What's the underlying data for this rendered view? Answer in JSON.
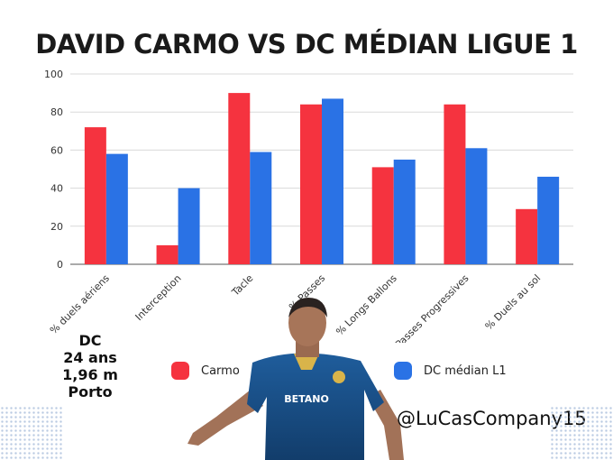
{
  "title": "DAVID CARMO VS DC MÉDIAN LIGUE 1",
  "player_info": [
    "DC",
    "24 ans",
    "1,96 m",
    "Porto"
  ],
  "handle": "@LuCasCompany15",
  "chart_data": {
    "type": "bar",
    "categories": [
      "% duels aériens",
      "Interception",
      "Tacle",
      "% Passes",
      "% Longs Ballons",
      "Passes Progressives",
      "% Duels au sol"
    ],
    "series": [
      {
        "name": "Carmo",
        "color": "#f5333f",
        "values": [
          72,
          10,
          90,
          84,
          51,
          84,
          29
        ]
      },
      {
        "name": "DC médian L1",
        "color": "#2a72e5",
        "values": [
          58,
          40,
          59,
          87,
          55,
          61,
          46
        ]
      }
    ],
    "yticks": [
      0,
      20,
      40,
      60,
      80,
      100
    ],
    "ylim": [
      0,
      100
    ],
    "grid": true,
    "legend": "bottom"
  }
}
